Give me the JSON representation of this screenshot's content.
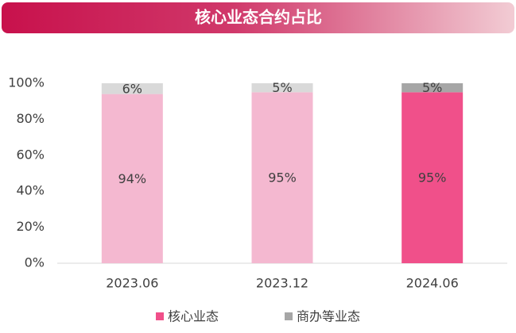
{
  "chart_data": {
    "type": "stacked_bar",
    "title": "核心业态合约占比",
    "categories": [
      "2023.06",
      "2023.12",
      "2024.06"
    ],
    "series": [
      {
        "name": "核心业态",
        "color": "#f0508a",
        "colors": [
          "#f4b8d0",
          "#f4b8d0",
          "#f0508a"
        ],
        "values": [
          94,
          95,
          95
        ],
        "value_labels": [
          "94%",
          "95%",
          "95%"
        ]
      },
      {
        "name": "商办等业态",
        "color": "#a6a6a6",
        "colors": [
          "#d9d9d9",
          "#d9d9d9",
          "#a6a6a6"
        ],
        "values": [
          6,
          5,
          5
        ],
        "value_labels": [
          "6%",
          "5%",
          "5%"
        ]
      }
    ],
    "ylim": [
      0,
      100
    ],
    "yticks": [
      {
        "value": 0,
        "label": "0%"
      },
      {
        "value": 20,
        "label": "20%"
      },
      {
        "value": 40,
        "label": "40%"
      },
      {
        "value": 60,
        "label": "60%"
      },
      {
        "value": 80,
        "label": "80%"
      },
      {
        "value": 100,
        "label": "100%"
      }
    ],
    "legend": "bottom"
  }
}
